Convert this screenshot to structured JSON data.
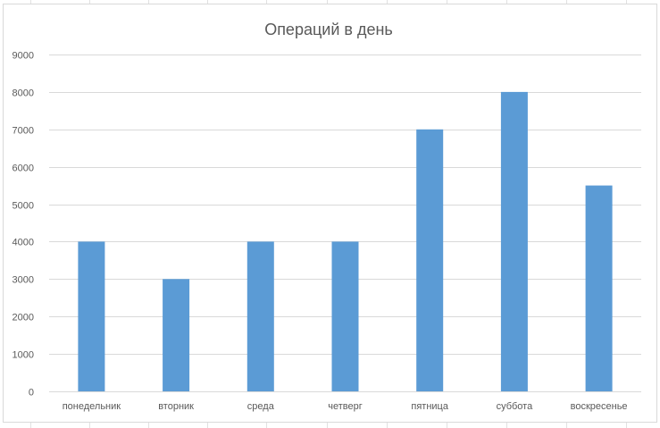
{
  "chart_data": {
    "type": "bar",
    "title": "Операций в день",
    "xlabel": "",
    "ylabel": "",
    "categories": [
      "понедельник",
      "вторник",
      "среда",
      "четверг",
      "пятница",
      "суббота",
      "воскресенье"
    ],
    "values": [
      4000,
      3000,
      4000,
      4000,
      7000,
      8000,
      5500
    ],
    "ylim": [
      0,
      9000
    ],
    "yticks": [
      "0",
      "1000",
      "2000",
      "3000",
      "4000",
      "5000",
      "6000",
      "7000",
      "8000",
      "9000"
    ],
    "grid": true,
    "legend": "none",
    "colors": {
      "bar": "#5b9bd5",
      "grid": "#d9d9d9",
      "text": "#595959",
      "sheet_grid": "#e1e1e1"
    }
  }
}
